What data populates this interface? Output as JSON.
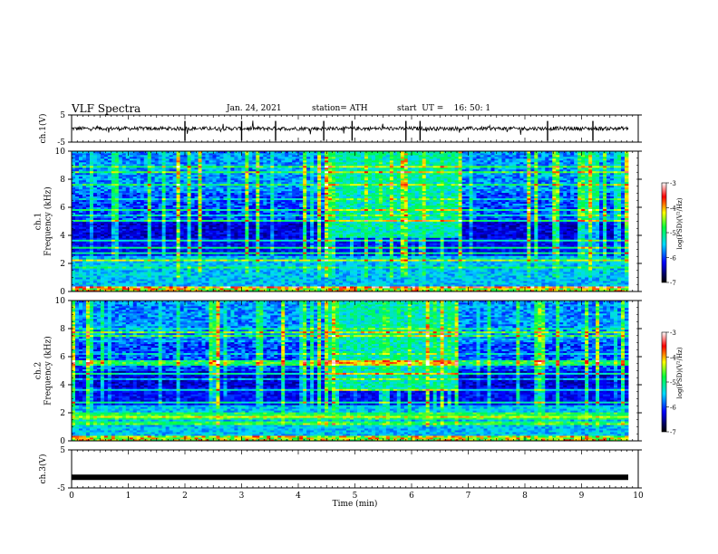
{
  "header": {
    "title": "VLF Spectra",
    "date": "Jan. 24, 2021",
    "station": "station= ATH",
    "start": "start  UT =    16: 50: 1"
  },
  "chart_data": [
    {
      "type": "line",
      "panel": "ch1-waveform",
      "ylabel": "ch.1(V)",
      "ylim": [
        -5,
        5
      ],
      "yticks": [
        "5",
        "-5"
      ],
      "xlim": [
        0,
        10
      ],
      "series": [
        {
          "values_note": "noisy signal around 0 V",
          "baseline": 0
        }
      ]
    },
    {
      "type": "heatmap",
      "panel": "ch1-spectrogram",
      "ylabel": "ch.1\nFrequency (kHz)",
      "xlim": [
        0,
        10
      ],
      "ylim": [
        0,
        10
      ],
      "yticks": [
        "0",
        "2",
        "4",
        "6",
        "8",
        "10"
      ],
      "colorbar": {
        "label": "log(PSD)(V²/Hz)",
        "range": [
          -7,
          -3
        ],
        "ticks": [
          "-3",
          "-4",
          "-5",
          "-6",
          "-7"
        ]
      },
      "features": [
        {
          "name": "chorus band",
          "t_start": 4.6,
          "t_end": 6.95,
          "f_low": 3.8,
          "f_high": 10
        },
        {
          "name": "low-frequency interference lines",
          "f_low": 0,
          "f_high": 2.5
        }
      ]
    },
    {
      "type": "heatmap",
      "panel": "ch2-spectrogram",
      "ylabel": "ch.2\nFrequency (kHz)",
      "xlim": [
        0,
        10
      ],
      "ylim": [
        0,
        10
      ],
      "yticks": [
        "0",
        "2",
        "4",
        "6",
        "8",
        "10"
      ],
      "colorbar": {
        "label": "log(PSD)(V²/Hz)",
        "range": [
          -7,
          -3
        ],
        "ticks": [
          "-3",
          "-4",
          "-5",
          "-6",
          "-7"
        ]
      },
      "features": [
        {
          "name": "chorus band",
          "t_start": 4.6,
          "t_end": 6.95,
          "f_low": 3.6,
          "f_high": 10
        },
        {
          "name": "low-frequency interference lines",
          "f_low": 0,
          "f_high": 2.5
        }
      ]
    },
    {
      "type": "line",
      "panel": "ch3-waveform",
      "ylabel": "ch.3(V)",
      "ylim": [
        -5,
        5
      ],
      "yticks": [
        "5",
        "-5"
      ],
      "xlim": [
        0,
        10
      ],
      "series": [
        {
          "values_note": "flat line",
          "baseline": -2.2
        }
      ]
    }
  ],
  "xaxis": {
    "label": "Time  (min)",
    "ticks": [
      "0",
      "1",
      "2",
      "3",
      "4",
      "5",
      "6",
      "7",
      "8",
      "9",
      "10"
    ]
  }
}
